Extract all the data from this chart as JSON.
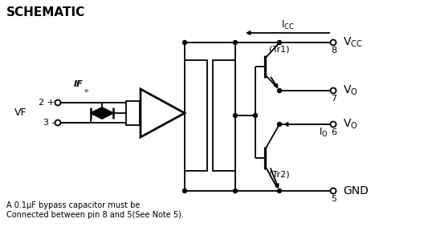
{
  "title": "SCHEMATIC",
  "note_line1": "A 0.1μF bypass capacitor must be",
  "note_line2": "Connected between pin 8 and 5(See Note 5).",
  "bg_color": "#ffffff",
  "line_color": "#000000",
  "fig_w": 5.33,
  "fig_h": 2.93,
  "dpi": 100
}
